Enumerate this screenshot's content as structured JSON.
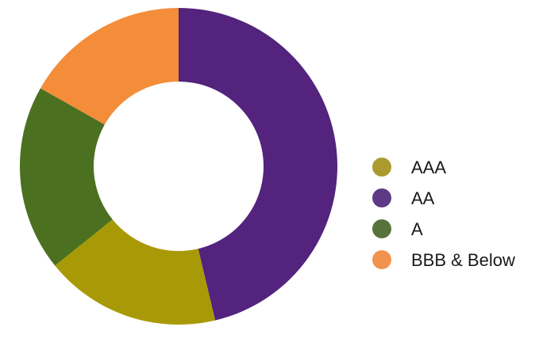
{
  "chart_data": {
    "type": "pie",
    "variant": "donut",
    "categories": [
      "AAA",
      "AA",
      "A",
      "BBB & Below"
    ],
    "values": [
      17.9,
      46.3,
      19.0,
      16.8
    ],
    "colors": [
      "#a89a06",
      "#53237d",
      "#4b7020",
      "#f38d3a"
    ],
    "legend_colors": [
      "#ab9a2e",
      "#5e3a86",
      "#58723c",
      "#f2924f"
    ],
    "slice_order": [
      "AA",
      "AAA",
      "A",
      "BBB & Below"
    ],
    "start_angle_deg": 0,
    "direction": "clockwise",
    "legend_position": "right",
    "title": ""
  }
}
